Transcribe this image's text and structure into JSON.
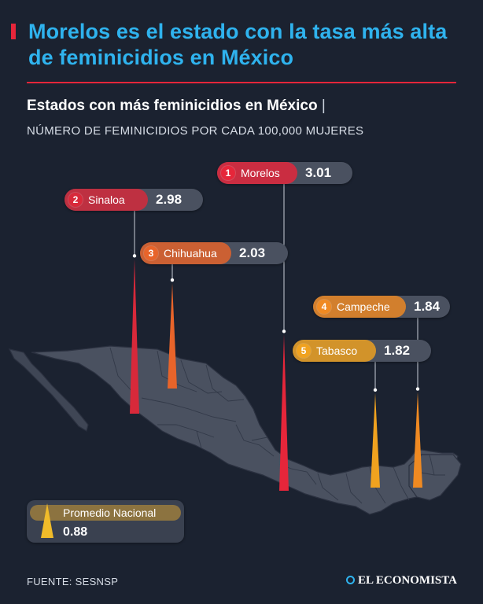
{
  "header": {
    "title": "Morelos es el estado con la tasa más alta de feminicidios en México",
    "subtitle": "Estados con más feminicidios en México",
    "subtitle_separator": "|",
    "unit": "NÚMERO DE FEMINICIDIOS POR CADA 100,000 MUJERES"
  },
  "chart_data": {
    "type": "bar",
    "title": "Estados con más feminicidios en México",
    "ylabel": "NÚMERO DE FEMINICIDIOS POR CADA 100,000 MUJERES",
    "categories": [
      "Morelos",
      "Sinaloa",
      "Chihuahua",
      "Campeche",
      "Tabasco"
    ],
    "ranks": [
      "1",
      "2",
      "3",
      "4",
      "5"
    ],
    "values": [
      3.01,
      2.98,
      2.03,
      1.84,
      1.82
    ],
    "value_labels": [
      "3.01",
      "2.98",
      "2.03",
      "1.84",
      "1.82"
    ],
    "reference": {
      "label": "Promedio Nacional",
      "value": 0.88,
      "value_label": "0.88"
    },
    "colors": {
      "1": "#e6263a",
      "2": "#d8293a",
      "3": "#e8642a",
      "4": "#f08a22",
      "5": "#f0a21f",
      "reference": "#f0bb2a"
    }
  },
  "footer": {
    "source": "FUENTE: SESNSP",
    "brand": "EL ECONOMISTA"
  },
  "colors": {
    "background": "#1b2230",
    "title": "#2fb3ee",
    "accent": "#e6263a",
    "map": "#4a5160"
  }
}
